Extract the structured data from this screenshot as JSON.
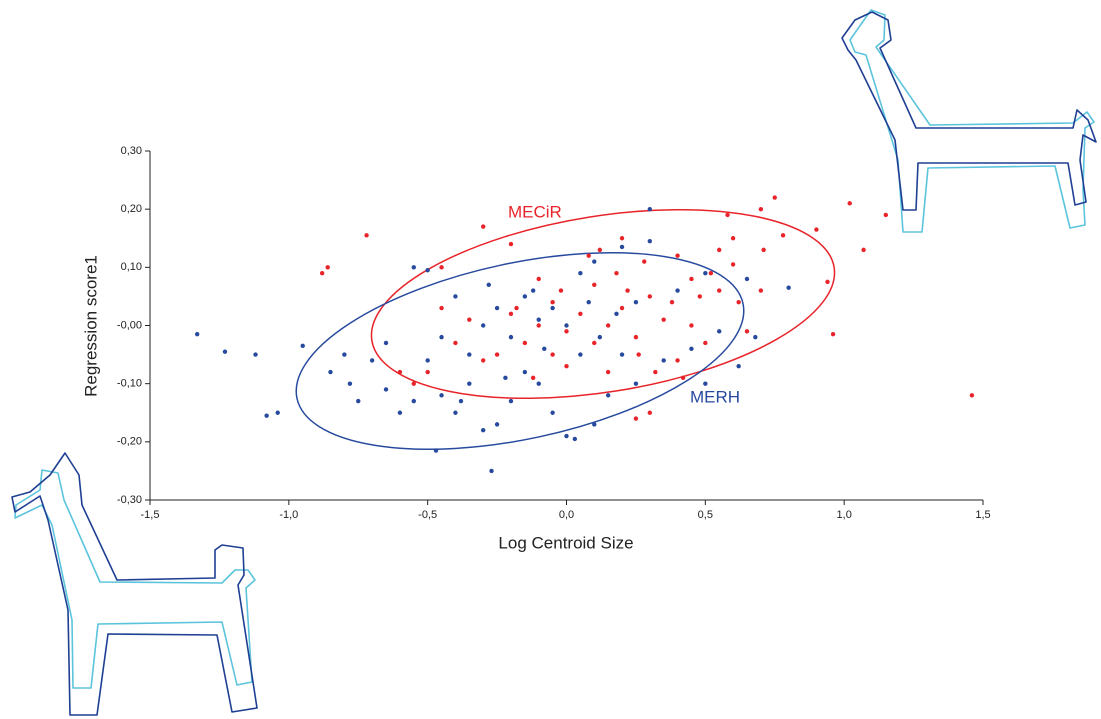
{
  "chart_data": {
    "type": "scatter",
    "x_label": "Log Centroid Size",
    "y_label": "Regression score1",
    "xlim": [
      -1.5,
      1.5
    ],
    "ylim": [
      -0.3,
      0.3
    ],
    "xticks": [
      {
        "value": -1.5,
        "label": "-1,5"
      },
      {
        "value": -1.0,
        "label": "-1,0"
      },
      {
        "value": -0.5,
        "label": "-0,5"
      },
      {
        "value": 0,
        "label": "0,0"
      },
      {
        "value": 0.5,
        "label": "0,5"
      },
      {
        "value": 1.0,
        "label": "1,0"
      },
      {
        "value": 1.5,
        "label": "1,5"
      }
    ],
    "yticks": [
      {
        "value": -0.3,
        "label": "-0,30"
      },
      {
        "value": -0.2,
        "label": "-0,20"
      },
      {
        "value": -0.1,
        "label": "-0,10"
      },
      {
        "value": 0,
        "label": "-0,00"
      },
      {
        "value": 0.1,
        "label": "0,10"
      },
      {
        "value": 0.2,
        "label": "0,20"
      },
      {
        "value": 0.3,
        "label": "0,30"
      }
    ],
    "series": [
      {
        "name": "MECiR",
        "color": "#e8242a",
        "x": [
          1.46,
          1.15,
          1.02,
          0.75,
          -0.72,
          -0.88,
          -0.86,
          -0.3,
          -0.2,
          0.96,
          0.94,
          1.07,
          0.9,
          0.78,
          0.71,
          0.6,
          0.6,
          0.55,
          0.52,
          0.45,
          0.3,
          0.35,
          0.25,
          0.2,
          0.15,
          0.1,
          0.05,
          0.0,
          -0.05,
          -0.1,
          -0.15,
          -0.2,
          -0.25,
          -0.3,
          -0.35,
          -0.4,
          -0.45,
          -0.5,
          -0.55,
          -0.45,
          -0.6,
          0.25,
          0.3,
          0.4,
          0.45,
          0.5,
          0.65,
          0.7,
          0.55,
          0.4,
          0.28,
          0.18,
          0.1,
          -0.02,
          -0.1,
          -0.18,
          0.22,
          0.32,
          0.15,
          0.0,
          -0.12,
          0.38,
          0.48,
          0.62,
          0.12,
          0.08,
          -0.05,
          0.26,
          0.42,
          0.58,
          0.7,
          0.2
        ],
        "y": [
          -0.12,
          0.19,
          0.21,
          0.22,
          0.155,
          0.09,
          0.1,
          0.17,
          0.14,
          -0.015,
          0.075,
          0.13,
          0.165,
          0.155,
          0.13,
          0.15,
          0.105,
          0.06,
          0.09,
          0.08,
          0.05,
          0.01,
          -0.02,
          0.03,
          0.0,
          -0.03,
          0.02,
          -0.01,
          0.04,
          0.0,
          -0.03,
          0.02,
          -0.05,
          -0.06,
          0.01,
          -0.03,
          0.03,
          -0.08,
          -0.1,
          0.1,
          -0.08,
          -0.16,
          -0.15,
          -0.06,
          0.0,
          -0.03,
          -0.01,
          0.06,
          0.13,
          0.12,
          0.11,
          0.09,
          0.07,
          0.06,
          0.08,
          0.03,
          0.06,
          -0.08,
          -0.08,
          -0.07,
          -0.09,
          0.04,
          0.05,
          0.04,
          0.13,
          0.12,
          -0.05,
          -0.05,
          -0.09,
          0.19,
          0.2,
          0.15
        ]
      },
      {
        "name": "MERH",
        "color": "#274a9e",
        "x": [
          -1.33,
          -1.23,
          -1.12,
          -1.08,
          -1.04,
          -0.95,
          -0.8,
          -0.78,
          -0.75,
          -0.65,
          -0.6,
          -0.55,
          -0.5,
          -0.47,
          -0.45,
          -0.4,
          -0.35,
          -0.3,
          -0.27,
          -0.25,
          -0.2,
          -0.15,
          -0.1,
          -0.05,
          0.0,
          0.03,
          0.1,
          0.15,
          0.2,
          0.25,
          0.3,
          0.3,
          0.2,
          0.1,
          0.05,
          -0.05,
          -0.1,
          -0.15,
          -0.2,
          -0.25,
          -0.3,
          -0.35,
          -0.4,
          -0.45,
          -0.5,
          -0.55,
          -0.65,
          -0.7,
          -0.85,
          0.0,
          0.05,
          0.12,
          0.18,
          0.25,
          0.35,
          0.4,
          0.45,
          0.5,
          0.55,
          0.65,
          0.68,
          0.8,
          0.62,
          0.5,
          -0.08,
          -0.22,
          -0.38,
          0.08,
          -0.28,
          -0.12
        ],
        "y": [
          -0.015,
          -0.045,
          -0.05,
          -0.155,
          -0.15,
          -0.035,
          -0.05,
          -0.1,
          -0.13,
          -0.11,
          -0.15,
          0.1,
          0.095,
          -0.215,
          -0.12,
          -0.15,
          -0.1,
          -0.18,
          -0.25,
          -0.17,
          -0.13,
          -0.08,
          -0.1,
          -0.15,
          -0.19,
          -0.195,
          -0.17,
          -0.12,
          -0.05,
          -0.1,
          0.2,
          0.145,
          0.135,
          0.11,
          0.09,
          0.03,
          0.01,
          0.05,
          -0.02,
          0.03,
          0.0,
          -0.05,
          0.05,
          -0.02,
          -0.06,
          -0.13,
          -0.03,
          -0.06,
          -0.08,
          0.0,
          -0.05,
          -0.02,
          0.02,
          0.04,
          -0.06,
          0.06,
          -0.04,
          0.09,
          -0.01,
          0.08,
          -0.02,
          0.065,
          -0.07,
          -0.1,
          -0.04,
          -0.09,
          -0.13,
          0.04,
          0.07,
          0.06
        ]
      }
    ]
  }
}
